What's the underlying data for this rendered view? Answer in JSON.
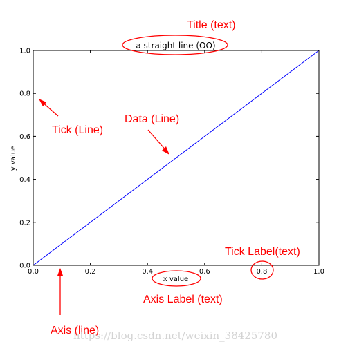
{
  "chart_data": {
    "type": "line",
    "title": "a straight line (OO)",
    "xlabel": "x value",
    "ylabel": "y value",
    "xlim": [
      0.0,
      1.0
    ],
    "ylim": [
      0.0,
      1.0
    ],
    "x_ticks": [
      "0.0",
      "0.2",
      "0.4",
      "0.6",
      "0.8",
      "1.0"
    ],
    "y_ticks": [
      "0.0",
      "0.2",
      "0.4",
      "0.6",
      "0.8",
      "1.0"
    ],
    "series": [
      {
        "x": [
          0.0,
          1.0
        ],
        "y": [
          0.0,
          1.0
        ],
        "color": "#0000ff"
      }
    ],
    "grid": false
  },
  "annotations": {
    "title_text": "Title (text)",
    "tick_line": "Tick (Line)",
    "data_line": "Data (Line)",
    "tick_label_text": "Tick Label(text)",
    "axis_label_text": "Axis Label (text)",
    "axis_line": "Axis (line)",
    "color": "#ff0000"
  },
  "watermark": "https://blog.csdn.net/weixin_38425780"
}
